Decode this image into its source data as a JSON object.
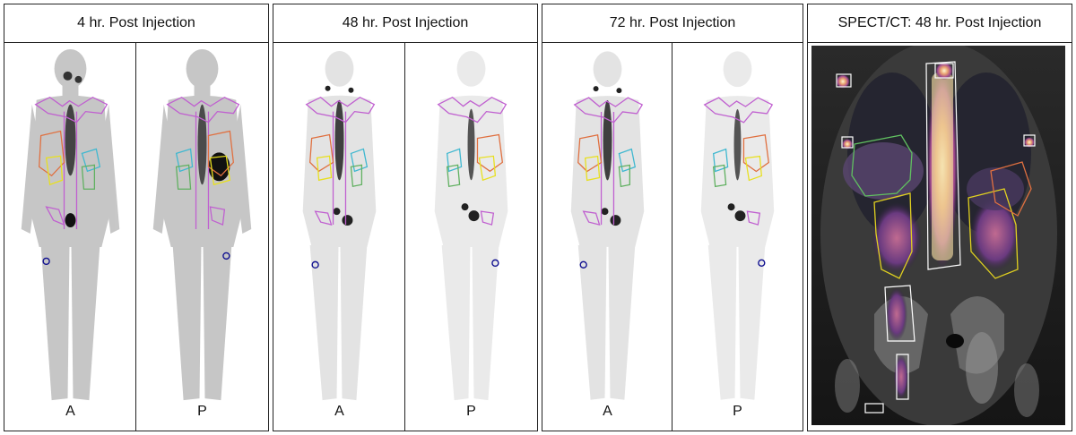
{
  "panels": [
    {
      "title": "4 hr. Post Injection",
      "views": [
        "A",
        "P"
      ]
    },
    {
      "title": "48 hr. Post Injection",
      "views": [
        "A",
        "P"
      ]
    },
    {
      "title": "72 hr. Post Injection",
      "views": [
        "A",
        "P"
      ]
    }
  ],
  "spect": {
    "title": "SPECT/CT: 48 hr. Post Injection"
  },
  "colors": {
    "roi_magenta": "#c060d0",
    "roi_orange": "#e07040",
    "roi_yellow": "#e8e020",
    "roi_cyan": "#40b8d0",
    "roi_green": "#60b060",
    "roi_blue": "#101090"
  }
}
